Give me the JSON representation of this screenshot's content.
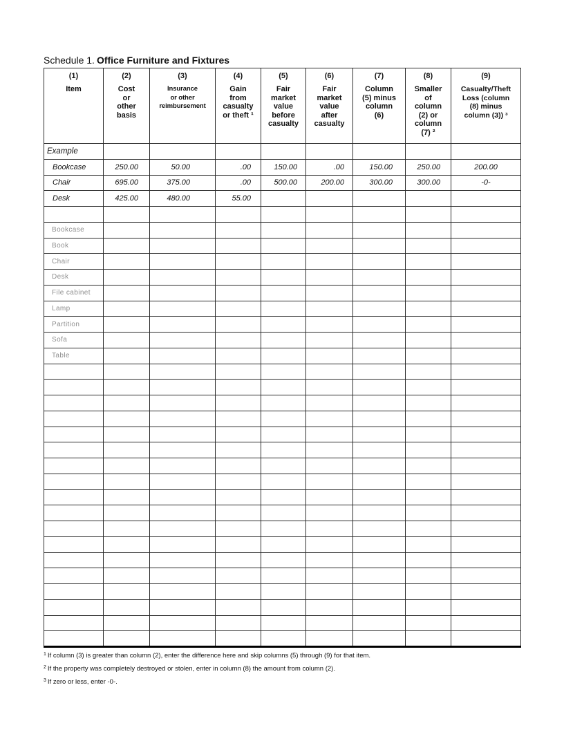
{
  "title": {
    "prefix": "Schedule 1.",
    "name": "Office Furniture and Fixtures"
  },
  "table": {
    "columns": [
      {
        "num": "(1)",
        "label": "Item"
      },
      {
        "num": "(2)",
        "label": "Cost\nor\nother\nbasis"
      },
      {
        "num": "(3)",
        "label": "Insurance\nor other\nreimbursement"
      },
      {
        "num": "(4)",
        "label": "Gain\nfrom\ncasualty\nor theft ¹"
      },
      {
        "num": "(5)",
        "label": "Fair\nmarket\nvalue\nbefore\ncasualty"
      },
      {
        "num": "(6)",
        "label": "Fair\nmarket\nvalue\nafter\ncasualty"
      },
      {
        "num": "(7)",
        "label": "Column\n(5) minus\ncolumn\n(6)"
      },
      {
        "num": "(8)",
        "label": "Smaller\nof\ncolumn\n(2) or\ncolumn\n(7) ²"
      },
      {
        "num": "(9)",
        "label": "Casualty/Theft\nLoss (column\n(8) minus\ncolumn (3)) ³"
      }
    ],
    "example_section": {
      "label": "Example",
      "rows": [
        {
          "item": "Bookcase",
          "values": [
            "250.00",
            "50.00",
            ".00",
            "150.00",
            ".00",
            "150.00",
            "250.00",
            "200.00"
          ]
        },
        {
          "item": "Chair",
          "values": [
            "695.00",
            "375.00",
            ".00",
            "500.00",
            "200.00",
            "300.00",
            "300.00",
            "-0-"
          ]
        },
        {
          "item": "Desk",
          "values": [
            "425.00",
            "480.00",
            "55.00",
            "",
            "",
            "",
            "",
            ""
          ]
        }
      ]
    },
    "preprinted_items": [
      "Bookcase",
      "Book",
      "Chair",
      "Desk",
      "File cabinet",
      "Lamp",
      "Partition",
      "Sofa",
      "Table"
    ],
    "blank_row_count": 18
  },
  "footnotes": [
    {
      "marker": "1",
      "text": "If column (3) is greater than column (2), enter the difference here and skip columns (5) through (9) for that item."
    },
    {
      "marker": "2",
      "text": "If the property was completely destroyed or stolen, enter in column (8) the amount from column (2)."
    },
    {
      "marker": "3",
      "text": "If zero or less, enter -0-."
    }
  ]
}
